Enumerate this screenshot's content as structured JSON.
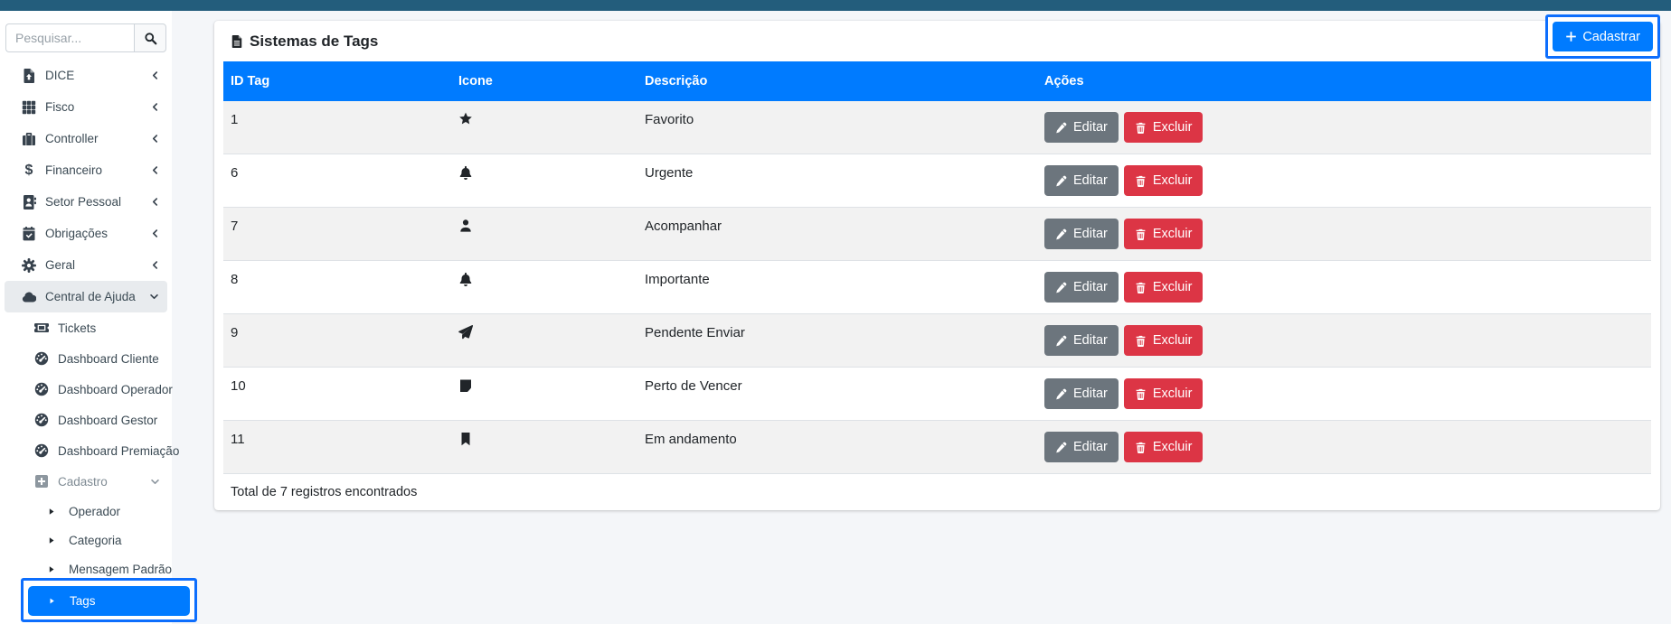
{
  "sidebar": {
    "search_placeholder": "Pesquisar...",
    "items": [
      {
        "label": "DICE",
        "icon": "file-upload",
        "state": "collapsed"
      },
      {
        "label": "Fisco",
        "icon": "grid",
        "state": "collapsed"
      },
      {
        "label": "Controller",
        "icon": "briefcase",
        "state": "collapsed"
      },
      {
        "label": "Financeiro",
        "icon": "dollar",
        "state": "collapsed"
      },
      {
        "label": "Setor Pessoal",
        "icon": "address-book",
        "state": "collapsed"
      },
      {
        "label": "Obrigações",
        "icon": "calendar-check",
        "state": "collapsed"
      },
      {
        "label": "Geral",
        "icon": "gear",
        "state": "collapsed"
      },
      {
        "label": "Central de Ajuda",
        "icon": "cloud",
        "state": "expanded",
        "active": true
      }
    ],
    "central_children": [
      {
        "label": "Tickets",
        "icon": "ticket"
      },
      {
        "label": "Dashboard Cliente",
        "icon": "gauge"
      },
      {
        "label": "Dashboard Operador",
        "icon": "gauge"
      },
      {
        "label": "Dashboard Gestor",
        "icon": "gauge"
      },
      {
        "label": "Dashboard Premiação",
        "icon": "gauge"
      },
      {
        "label": "Cadastro",
        "icon": "plus-square",
        "state": "expanded",
        "muted": true
      }
    ],
    "cadastro_children": [
      {
        "label": "Operador"
      },
      {
        "label": "Categoria"
      },
      {
        "label": "Mensagem Padrão"
      },
      {
        "label": "Tags",
        "selected": true
      }
    ]
  },
  "main": {
    "page_title": "Sistemas de Tags",
    "title_icon": "file-alt",
    "cadastrar_button": "Cadastrar",
    "table": {
      "columns": [
        "ID Tag",
        "Icone",
        "Descrição",
        "Ações"
      ],
      "rows": [
        {
          "id": "1",
          "icon": "star",
          "descricao": "Favorito"
        },
        {
          "id": "6",
          "icon": "bell",
          "descricao": "Urgente"
        },
        {
          "id": "7",
          "icon": "user",
          "descricao": "Acompanhar"
        },
        {
          "id": "8",
          "icon": "bell",
          "descricao": "Importante"
        },
        {
          "id": "9",
          "icon": "paper-plane",
          "descricao": "Pendente Enviar"
        },
        {
          "id": "10",
          "icon": "sticky-note",
          "descricao": "Perto de Vencer"
        },
        {
          "id": "11",
          "icon": "bookmark",
          "descricao": "Em andamento"
        }
      ],
      "actions": {
        "edit": "Editar",
        "delete": "Excluir"
      },
      "footer_text": "Total de 7 registros encontrados"
    }
  },
  "colors": {
    "topbar": "#235d7c",
    "primary": "#007bff",
    "annotation": "#0d6efd",
    "edit_button": "#6c757d",
    "delete_button": "#dc3545",
    "stripe": "#f2f2f2",
    "background": "#f4f6f9"
  }
}
